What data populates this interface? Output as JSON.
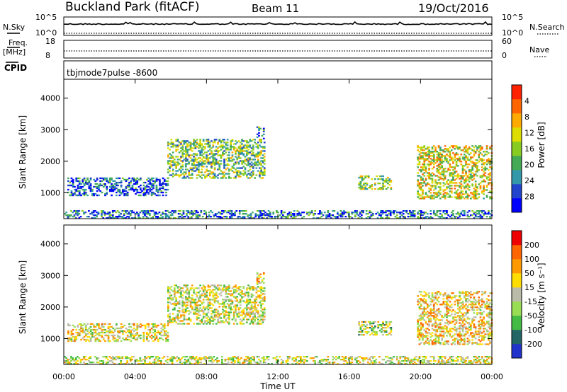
{
  "header": {
    "site": "Buckland Park (fitACF)",
    "beam": "Beam 11",
    "date": "19/Oct/2016"
  },
  "noise_panel": {
    "left_label": "N.Sky",
    "right_label": "N.Search",
    "left_ticks": [
      "10^5",
      "10^0"
    ],
    "right_ticks": [
      "10^5",
      "10^0"
    ]
  },
  "freq_panel": {
    "left_label_1": "Freq.",
    "left_label_2": "[MHz]",
    "right_label": "Nave",
    "left_ticks": [
      "18",
      "8"
    ],
    "right_ticks": [
      "60",
      "0"
    ]
  },
  "cpid": {
    "label": "CPID",
    "value": "tbjmode7pulse  -8600"
  },
  "chart_data": [
    {
      "type": "heatmap",
      "ylabel": "Slant Range [km]",
      "x_ticks": [
        "00:00",
        "04:00",
        "08:00",
        "12:00",
        "16:00",
        "20:00",
        "00:00"
      ],
      "y_ticks": [
        "1000",
        "2000",
        "3000",
        "4000"
      ],
      "xlim_hours": [
        0,
        24
      ],
      "ylim_km": [
        180,
        4600
      ],
      "colorbar": {
        "label": "Power [dB]",
        "ticks": [
          "4",
          "8",
          "12",
          "16",
          "20",
          "24",
          "28"
        ],
        "colors": [
          "#0000ff",
          "#2244cc",
          "#3399aa",
          "#44aa55",
          "#88cc22",
          "#dddd00",
          "#ffaa00",
          "#ff6600",
          "#ff2200"
        ]
      },
      "echo_regions": [
        {
          "t0": 0.2,
          "t1": 5.8,
          "r0": 900,
          "r1": 1450,
          "level": 0.2
        },
        {
          "t0": 5.8,
          "t1": 11.2,
          "r0": 1450,
          "r1": 2700,
          "level": 0.45
        },
        {
          "t0": 10.8,
          "t1": 11.2,
          "r0": 2700,
          "r1": 3100,
          "level": 0.3
        },
        {
          "t0": 16.5,
          "t1": 18.3,
          "r0": 1100,
          "r1": 1550,
          "level": 0.5
        },
        {
          "t0": 19.8,
          "t1": 24.0,
          "r0": 800,
          "r1": 2500,
          "level": 0.6
        },
        {
          "t0": 0.0,
          "t1": 24.0,
          "r0": 180,
          "r1": 420,
          "level": 0.25
        }
      ]
    },
    {
      "type": "heatmap",
      "ylabel": "Slant Range [km]",
      "xlabel": "Time UT",
      "x_ticks": [
        "00:00",
        "04:00",
        "08:00",
        "12:00",
        "16:00",
        "20:00",
        "00:00"
      ],
      "y_ticks": [
        "1000",
        "2000",
        "3000",
        "4000"
      ],
      "xlim_hours": [
        0,
        24
      ],
      "ylim_km": [
        180,
        4600
      ],
      "colorbar": {
        "label": "Velocity [m s⁻¹]",
        "ticks": [
          "200",
          "100",
          "50",
          "15",
          "-15",
          "-50",
          "-100",
          "-200"
        ],
        "colors": [
          "#2233cc",
          "#226666",
          "#44bb44",
          "#99dd55",
          "#bbbbaa",
          "#ffdd00",
          "#ff9900",
          "#ff6600",
          "#ee0000"
        ]
      },
      "echo_regions": [
        {
          "t0": 0.2,
          "t1": 5.8,
          "r0": 900,
          "r1": 1450,
          "level": 0.55
        },
        {
          "t0": 5.8,
          "t1": 11.2,
          "r0": 1450,
          "r1": 2700,
          "level": 0.5
        },
        {
          "t0": 10.8,
          "t1": 11.2,
          "r0": 2700,
          "r1": 3100,
          "level": 0.6
        },
        {
          "t0": 16.5,
          "t1": 18.3,
          "r0": 1100,
          "r1": 1550,
          "level": 0.45
        },
        {
          "t0": 19.8,
          "t1": 24.0,
          "r0": 800,
          "r1": 2500,
          "level": 0.6
        },
        {
          "t0": 0.0,
          "t1": 24.0,
          "r0": 180,
          "r1": 420,
          "level": 0.5
        }
      ]
    }
  ]
}
